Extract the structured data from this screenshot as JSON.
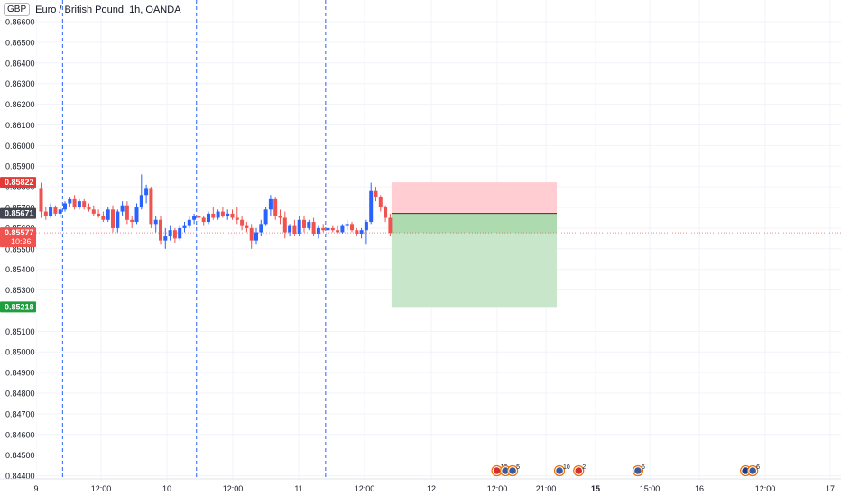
{
  "header": {
    "currency": "GBP",
    "symbol_title": "Euro / British Pound, 1h, OANDA"
  },
  "colors": {
    "up": "#2962ff",
    "down": "#ef5350",
    "stop_zone": "#ffcdd2",
    "target_zone": "#c8e6c9",
    "entry_line": "#2e7d32",
    "session_line": "#2962ff"
  },
  "chart_data": {
    "type": "candlestick",
    "y_axis": {
      "position": "left",
      "range": [
        0.84385,
        0.86705
      ],
      "ticks": [
        "0.86600",
        "0.86500",
        "0.86400",
        "0.86300",
        "0.86200",
        "0.86100",
        "0.86000",
        "0.85900",
        "0.85800",
        "0.85700",
        "0.85600",
        "0.85500",
        "0.85400",
        "0.85300",
        "0.85100",
        "0.85000",
        "0.84900",
        "0.84800",
        "0.84700",
        "0.84600",
        "0.84500",
        "0.84400"
      ]
    },
    "x_axis": {
      "ticks": [
        "9",
        "12:00",
        "10",
        "12:00",
        "11",
        "12:00",
        "12",
        "12:00",
        "21:00",
        "15",
        "15:00",
        "16",
        "12:00",
        "17"
      ]
    },
    "price_labels": [
      {
        "value": "0.85822",
        "kind": "stop"
      },
      {
        "value": "0.85671",
        "kind": "entry"
      },
      {
        "value": "0.85577",
        "kind": "last",
        "countdown": "10:36"
      },
      {
        "value": "0.85218",
        "kind": "target"
      }
    ],
    "position_tool": {
      "entry": 0.85671,
      "stop": 0.85822,
      "target": 0.85218
    },
    "session_breaks": [
      "9",
      "10",
      "11"
    ],
    "candles": [
      [
        0.8579,
        0.8582,
        0.8565,
        0.8568
      ],
      [
        0.8568,
        0.857,
        0.8564,
        0.8566
      ],
      [
        0.8566,
        0.8572,
        0.8565,
        0.857
      ],
      [
        0.857,
        0.8571,
        0.8566,
        0.8567
      ],
      [
        0.8567,
        0.857,
        0.8565,
        0.8569
      ],
      [
        0.8569,
        0.8573,
        0.8568,
        0.8572
      ],
      [
        0.8572,
        0.8575,
        0.857,
        0.8574
      ],
      [
        0.8574,
        0.8576,
        0.8569,
        0.857
      ],
      [
        0.857,
        0.8574,
        0.8569,
        0.8573
      ],
      [
        0.8573,
        0.8574,
        0.8569,
        0.857
      ],
      [
        0.857,
        0.8572,
        0.8568,
        0.8569
      ],
      [
        0.8569,
        0.8571,
        0.8566,
        0.8567
      ],
      [
        0.8567,
        0.8569,
        0.8565,
        0.8566
      ],
      [
        0.8566,
        0.8568,
        0.8563,
        0.8564
      ],
      [
        0.8564,
        0.857,
        0.8563,
        0.8569
      ],
      [
        0.8569,
        0.8571,
        0.8558,
        0.856
      ],
      [
        0.856,
        0.8569,
        0.8558,
        0.8568
      ],
      [
        0.8568,
        0.8573,
        0.8566,
        0.8571
      ],
      [
        0.8571,
        0.8573,
        0.8562,
        0.8564
      ],
      [
        0.8564,
        0.8566,
        0.856,
        0.8563
      ],
      [
        0.8563,
        0.8572,
        0.8562,
        0.857
      ],
      [
        0.857,
        0.8586,
        0.8569,
        0.8576
      ],
      [
        0.8576,
        0.8581,
        0.8572,
        0.8579
      ],
      [
        0.8579,
        0.858,
        0.856,
        0.8562
      ],
      [
        0.8562,
        0.8566,
        0.8558,
        0.8564
      ],
      [
        0.8564,
        0.8566,
        0.8552,
        0.8554
      ],
      [
        0.8554,
        0.856,
        0.855,
        0.8556
      ],
      [
        0.8556,
        0.8561,
        0.8554,
        0.8559
      ],
      [
        0.8559,
        0.856,
        0.8553,
        0.8555
      ],
      [
        0.8555,
        0.8561,
        0.8554,
        0.856
      ],
      [
        0.856,
        0.8563,
        0.8558,
        0.8561
      ],
      [
        0.8561,
        0.8566,
        0.856,
        0.8564
      ],
      [
        0.8564,
        0.8567,
        0.8562,
        0.8566
      ],
      [
        0.8566,
        0.8568,
        0.8563,
        0.8565
      ],
      [
        0.8565,
        0.8566,
        0.8561,
        0.8563
      ],
      [
        0.8563,
        0.8568,
        0.8562,
        0.8567
      ],
      [
        0.8567,
        0.857,
        0.8564,
        0.8565
      ],
      [
        0.8565,
        0.8569,
        0.8564,
        0.8568
      ],
      [
        0.8568,
        0.857,
        0.8565,
        0.8566
      ],
      [
        0.8566,
        0.8569,
        0.8564,
        0.8567
      ],
      [
        0.8567,
        0.8569,
        0.8564,
        0.8565
      ],
      [
        0.8565,
        0.857,
        0.8562,
        0.8564
      ],
      [
        0.8564,
        0.8566,
        0.8559,
        0.8561
      ],
      [
        0.8561,
        0.8563,
        0.8558,
        0.856
      ],
      [
        0.856,
        0.8562,
        0.855,
        0.8554
      ],
      [
        0.8554,
        0.856,
        0.8552,
        0.8558
      ],
      [
        0.8558,
        0.8564,
        0.8556,
        0.8562
      ],
      [
        0.8562,
        0.857,
        0.8561,
        0.8569
      ],
      [
        0.8569,
        0.8576,
        0.8566,
        0.8574
      ],
      [
        0.8574,
        0.8575,
        0.8564,
        0.8566
      ],
      [
        0.8566,
        0.8569,
        0.8562,
        0.8565
      ],
      [
        0.8565,
        0.8568,
        0.8555,
        0.8558
      ],
      [
        0.8558,
        0.8562,
        0.8556,
        0.8561
      ],
      [
        0.8561,
        0.8564,
        0.8556,
        0.8557
      ],
      [
        0.8557,
        0.8566,
        0.8556,
        0.8564
      ],
      [
        0.8564,
        0.8566,
        0.8558,
        0.856
      ],
      [
        0.856,
        0.8564,
        0.8559,
        0.8563
      ],
      [
        0.8563,
        0.8565,
        0.8556,
        0.8557
      ],
      [
        0.8557,
        0.8561,
        0.8555,
        0.856
      ],
      [
        0.856,
        0.8562,
        0.8558,
        0.8559
      ],
      [
        0.8559,
        0.8562,
        0.8558,
        0.856
      ],
      [
        0.856,
        0.8561,
        0.8558,
        0.8559
      ],
      [
        0.8559,
        0.8561,
        0.8557,
        0.8558
      ],
      [
        0.8558,
        0.8562,
        0.8557,
        0.8561
      ],
      [
        0.8561,
        0.8564,
        0.8559,
        0.8562
      ],
      [
        0.8562,
        0.8563,
        0.8558,
        0.8559
      ],
      [
        0.8559,
        0.856,
        0.8556,
        0.8557
      ],
      [
        0.8557,
        0.856,
        0.8555,
        0.8559
      ],
      [
        0.8559,
        0.8564,
        0.8552,
        0.8563
      ],
      [
        0.8563,
        0.8582,
        0.8562,
        0.8578
      ],
      [
        0.8578,
        0.858,
        0.8573,
        0.8575
      ],
      [
        0.8575,
        0.8576,
        0.8568,
        0.857
      ],
      [
        0.857,
        0.8571,
        0.8563,
        0.8565
      ],
      [
        0.8565,
        0.8567,
        0.8556,
        0.85577
      ]
    ],
    "events": [
      {
        "x_slot": 95.3,
        "flag": "uk",
        "count": "13"
      },
      {
        "x_slot": 97.1,
        "flag": "us",
        "count": ""
      },
      {
        "x_slot": 98.6,
        "flag": "us",
        "count": "5"
      },
      {
        "x_slot": 108.4,
        "flag": "us",
        "count": "10"
      },
      {
        "x_slot": 112.4,
        "flag": "uk",
        "count": "2"
      },
      {
        "x_slot": 124.8,
        "flag": "us",
        "count": "6"
      },
      {
        "x_slot": 147.3,
        "flag": "eu",
        "count": ""
      },
      {
        "x_slot": 148.8,
        "flag": "us",
        "count": "6"
      }
    ]
  }
}
